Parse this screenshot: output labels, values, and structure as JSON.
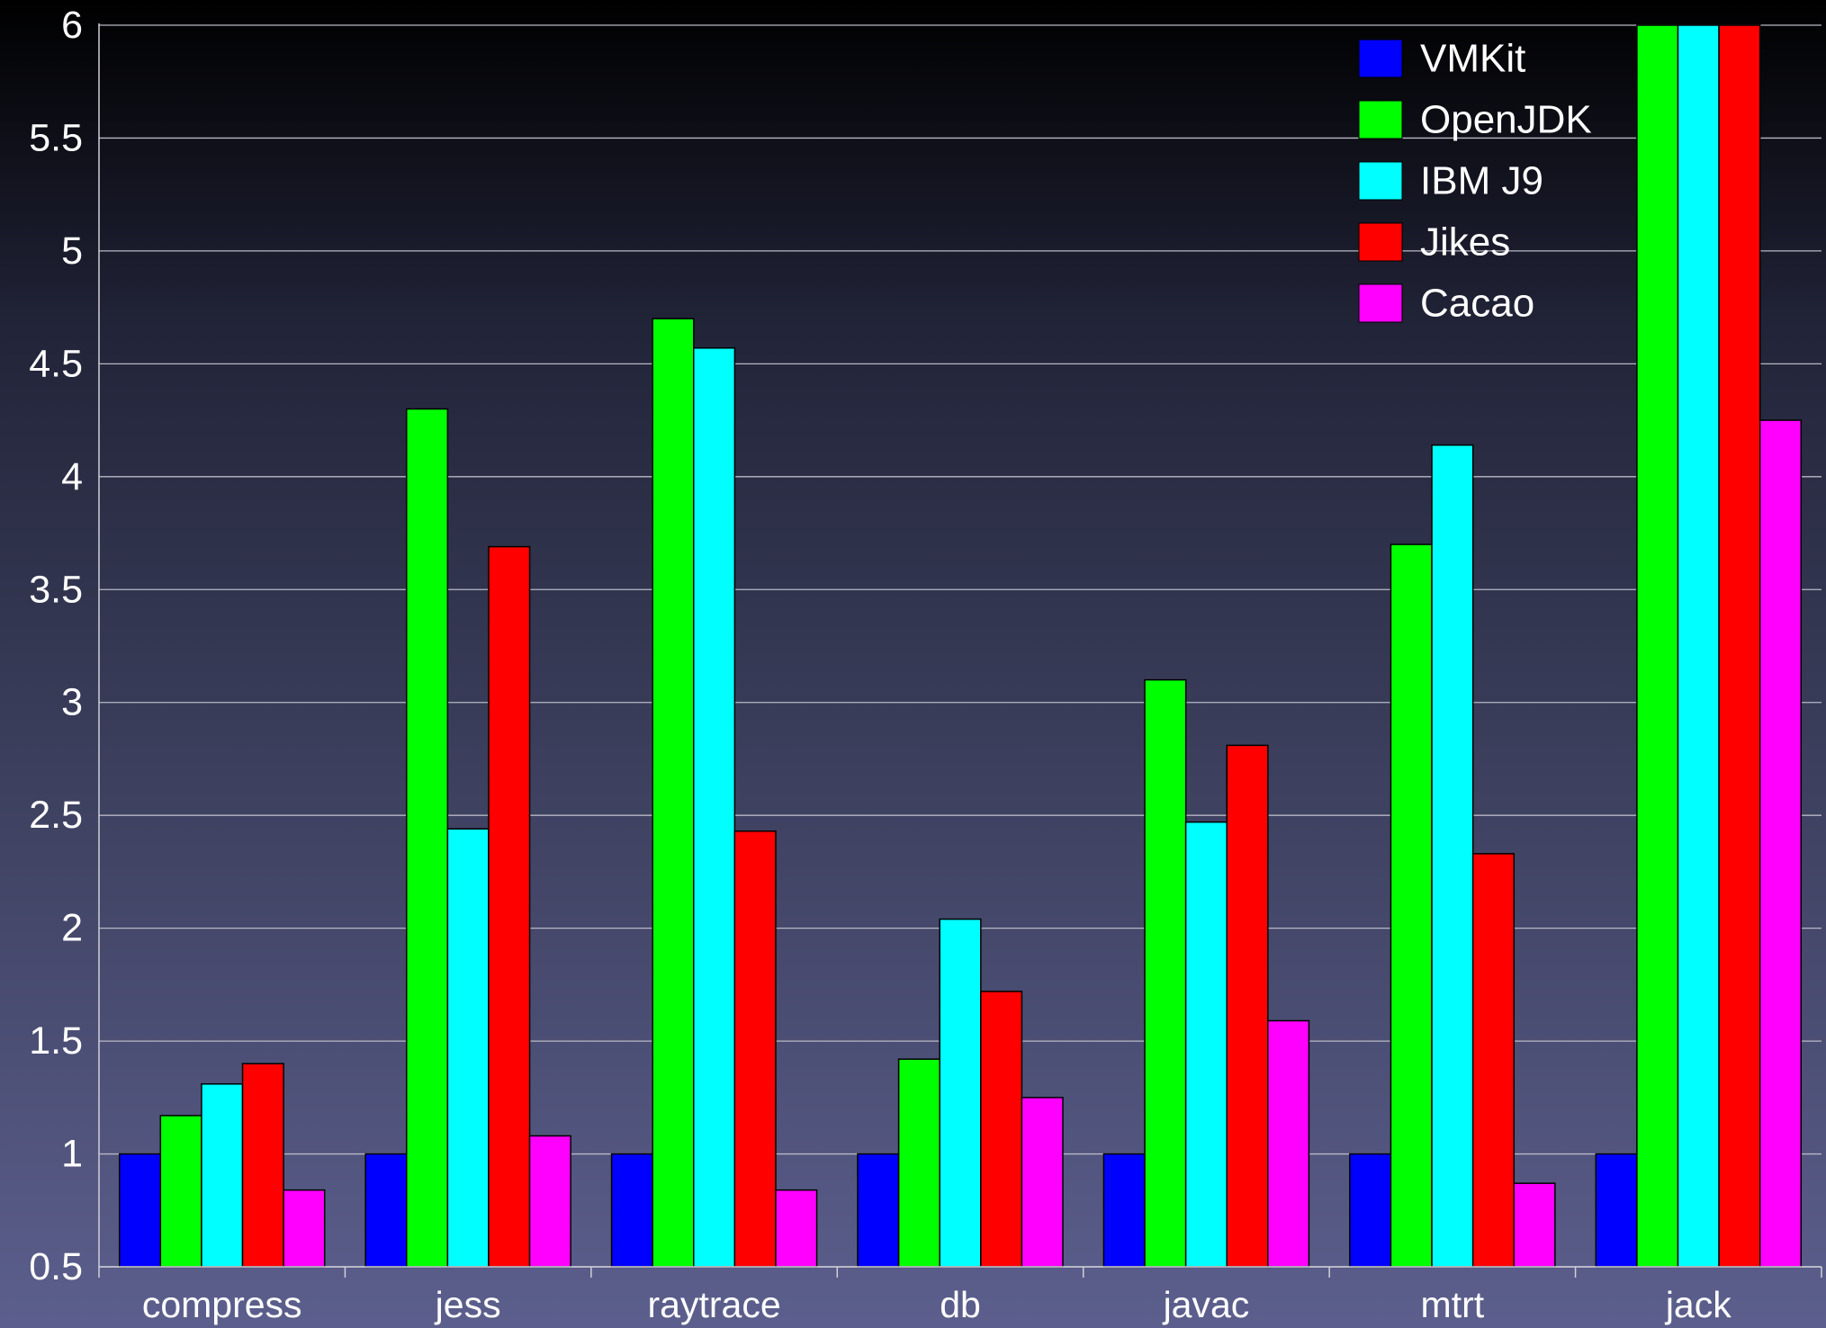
{
  "chart_data": {
    "type": "bar",
    "title": "",
    "xlabel": "",
    "ylabel": "",
    "ylim": [
      0.5,
      6
    ],
    "yticks": [
      0.5,
      1,
      1.5,
      2,
      2.5,
      3,
      3.5,
      4,
      4.5,
      5,
      5.5,
      6
    ],
    "ytick_labels": [
      "0.5",
      "1",
      "1.5",
      "2",
      "2.5",
      "3",
      "3.5",
      "4",
      "4.5",
      "5",
      "5.5",
      "6"
    ],
    "grid": true,
    "legend_position": "top-right",
    "categories": [
      "compress",
      "jess",
      "raytrace",
      "db",
      "javac",
      "mtrt",
      "jack"
    ],
    "series": [
      {
        "name": "VMKit",
        "color": "#0000ff",
        "values": [
          1.0,
          1.0,
          1.0,
          1.0,
          1.0,
          1.0,
          1.0
        ]
      },
      {
        "name": "OpenJDK",
        "color": "#00ff00",
        "values": [
          1.17,
          4.3,
          4.7,
          1.42,
          3.1,
          3.7,
          6.0
        ]
      },
      {
        "name": "IBM J9",
        "color": "#00ffff",
        "values": [
          1.31,
          2.44,
          4.57,
          2.04,
          2.47,
          4.14,
          6.0
        ]
      },
      {
        "name": "Jikes",
        "color": "#ff0000",
        "values": [
          1.4,
          3.69,
          2.43,
          1.72,
          2.81,
          2.33,
          6.0
        ]
      },
      {
        "name": "Cacao",
        "color": "#ff00ff",
        "values": [
          0.84,
          1.08,
          0.84,
          1.25,
          1.59,
          0.87,
          4.25
        ]
      }
    ]
  }
}
